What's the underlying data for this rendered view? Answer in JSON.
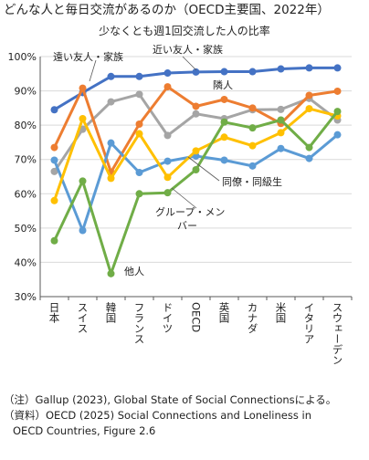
{
  "title": "どんな人と毎日交流があるのか（OECD主要国、2022年）",
  "subtitle": "少なくとも週1回交流した人の比率",
  "notes": [
    "（注）Gallup (2023), Global State of Social Connectionsによる。",
    "（資料）OECD (2025) Social Connections and Loneliness in",
    "OECD Countries, Figure 2.6"
  ],
  "chart_data": {
    "type": "line",
    "categories": [
      "日本",
      "スイス",
      "韓国",
      "フランス",
      "ドイツ",
      "OECD",
      "英国",
      "カナダ",
      "米国",
      "イタリア",
      "スウェーデン"
    ],
    "ylim": [
      30,
      100
    ],
    "yticks": [
      "30%",
      "40%",
      "50%",
      "60%",
      "70%",
      "80%",
      "90%",
      "100%"
    ],
    "grid": true,
    "legend": "none",
    "series": [
      {
        "name": "近い友人・家族",
        "color": "#4472C4",
        "values": [
          84.5,
          89.5,
          94.2,
          94.2,
          95.2,
          95.5,
          95.6,
          95.6,
          96.4,
          96.7,
          96.7
        ]
      },
      {
        "name": "遠い友人・家族",
        "color": "#A5A5A5",
        "values": [
          66.5,
          78.8,
          86.8,
          89.0,
          77.0,
          83.3,
          81.9,
          84.5,
          84.6,
          87.8,
          81.5
        ]
      },
      {
        "name": "隣人",
        "color": "#ED7D31",
        "values": [
          73.5,
          90.8,
          66.3,
          80.3,
          91.2,
          85.5,
          87.5,
          85.0,
          80.5,
          88.7,
          89.9
        ]
      },
      {
        "name": "同僚・同級生",
        "color": "#5B9BD5",
        "values": [
          69.8,
          49.3,
          74.8,
          66.2,
          69.5,
          71.0,
          69.8,
          68.1,
          73.2,
          70.3,
          77.2
        ]
      },
      {
        "name": "グループ・メンバー",
        "color": "#FFC000",
        "values": [
          58.0,
          81.9,
          64.5,
          77.5,
          64.8,
          72.5,
          76.5,
          74.0,
          77.8,
          84.8,
          82.7
        ]
      },
      {
        "name": "他人",
        "color": "#70AD47",
        "values": [
          46.3,
          63.7,
          36.7,
          60.0,
          60.3,
          67.0,
          80.9,
          79.2,
          81.5,
          73.5,
          84.0
        ]
      }
    ],
    "annotations": [
      {
        "text": "遠い友人・家族",
        "series": "遠い友人・家族"
      },
      {
        "text": "近い友人・家族",
        "series": "近い友人・家族"
      },
      {
        "text": "隣人",
        "series": "隣人"
      },
      {
        "text": "同僚・同級生",
        "series": "同僚・同級生"
      },
      {
        "text": "グループ・メン",
        "series": "グループ・メンバー"
      },
      {
        "text": "バー",
        "series": "グループ・メンバー"
      },
      {
        "text": "他人",
        "series": "他人"
      }
    ]
  }
}
